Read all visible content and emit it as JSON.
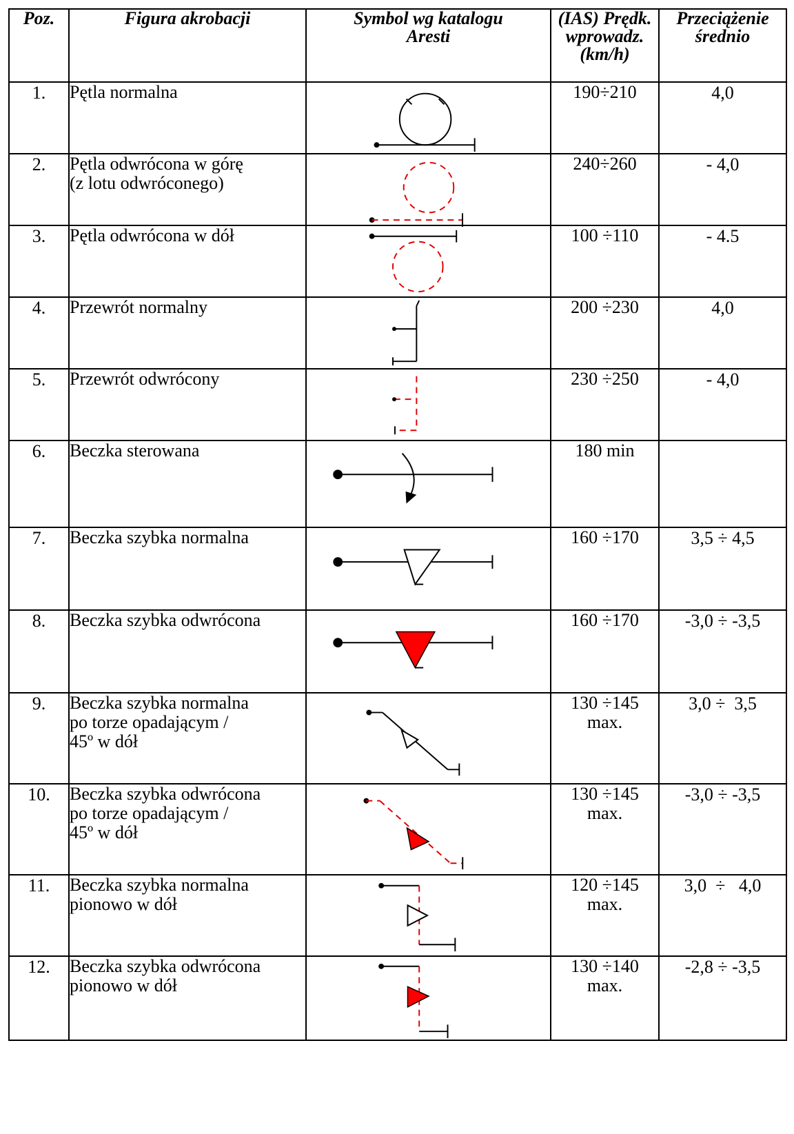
{
  "header": {
    "pos": "Poz.",
    "figure": "Figura akrobacji",
    "symbol_line1": "Symbol wg katalogu",
    "symbol_line2": "Aresti",
    "speed_line1": "(IAS) Prędk.",
    "speed_line2": "wprowadz.",
    "speed_line3": "(km/h)",
    "g_line1": "Przeciążenie",
    "g_line2": "średnio"
  },
  "rows": [
    {
      "pos": "1.",
      "name_lines": [
        "Pętla normalna"
      ],
      "speed_lines": [
        "190÷210"
      ],
      "g": "4,0",
      "symbol": "loop-normal"
    },
    {
      "pos": "2.",
      "name_lines": [
        "Pętla odwrócona w górę",
        "(z lotu odwróconego)"
      ],
      "speed_lines": [
        "240÷260"
      ],
      "g": "- 4,0",
      "symbol": "loop-inverted-up"
    },
    {
      "pos": "3.",
      "name_lines": [
        "Pętla odwrócona w dół"
      ],
      "speed_lines": [
        "100 ÷110"
      ],
      "g": "- 4.5",
      "symbol": "loop-inverted-down"
    },
    {
      "pos": "4.",
      "name_lines": [
        "Przewrót normalny"
      ],
      "speed_lines": [
        "200 ÷230"
      ],
      "g": "4,0",
      "symbol": "split-s-normal"
    },
    {
      "pos": "5.",
      "name_lines": [
        "Przewrót odwrócony"
      ],
      "speed_lines": [
        "230 ÷250"
      ],
      "g": "- 4,0",
      "symbol": "split-s-inverted"
    },
    {
      "pos": "6.",
      "name_lines": [
        "Beczka sterowana"
      ],
      "speed_lines": [
        "180 min"
      ],
      "g": "",
      "symbol": "aileron-roll"
    },
    {
      "pos": "7.",
      "name_lines": [
        "Beczka szybka normalna"
      ],
      "speed_lines": [
        "160 ÷170"
      ],
      "g": "3,5 ÷ 4,5",
      "symbol": "snap-roll-normal"
    },
    {
      "pos": "8.",
      "name_lines": [
        "Beczka szybka odwrócona"
      ],
      "speed_lines": [
        "160 ÷170"
      ],
      "g": "-3,0 ÷ -3,5",
      "symbol": "snap-roll-inverted"
    },
    {
      "pos": "9.",
      "name_lines": [
        "Beczka szybka normalna",
        "po torze opadającym /",
        "45º w dół"
      ],
      "speed_lines": [
        "130 ÷145",
        "max."
      ],
      "g": "3,0 ÷  3,5",
      "symbol": "snap-45-normal"
    },
    {
      "pos": "10.",
      "name_lines": [
        "Beczka szybka odwrócona",
        "po torze opadającym /",
        "45º w dół"
      ],
      "speed_lines": [
        "130 ÷145",
        "max."
      ],
      "g": "-3,0 ÷ -3,5",
      "symbol": "snap-45-inverted"
    },
    {
      "pos": "11.",
      "name_lines": [
        "Beczka szybka normalna",
        "pionowo w dół"
      ],
      "speed_lines": [
        "120 ÷145",
        "max."
      ],
      "g": "3,0  ÷   4,0",
      "symbol": "snap-vertical-normal"
    },
    {
      "pos": "12.",
      "name_lines": [
        "Beczka szybka odwrócona",
        "pionowo w dół"
      ],
      "speed_lines": [
        "130 ÷140",
        "max."
      ],
      "g": "-2,8 ÷ -3,5",
      "symbol": "snap-vertical-inverted"
    }
  ],
  "colors": {
    "inverted_line": "#e00000",
    "inverted_triangle": "#ff0000"
  }
}
